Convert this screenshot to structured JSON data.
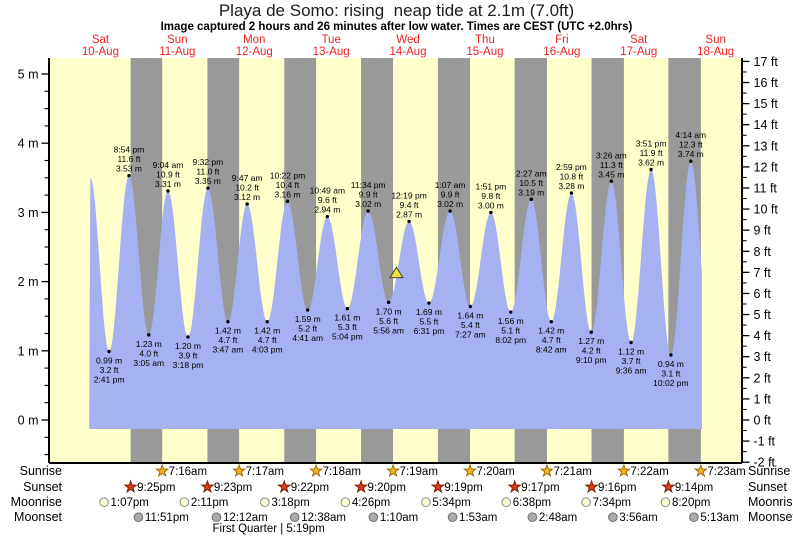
{
  "chart_data": {
    "type": "area",
    "title": "Playa de Somo: rising  neap tide at 2.1m (7.0ft)",
    "subtitle": "Image captured 2 hours and 26 minutes after low water. Times are CEST (UTC +2.0hrs)",
    "days": [
      {
        "name": "Sat",
        "date": "10-Aug"
      },
      {
        "name": "Sun",
        "date": "11-Aug"
      },
      {
        "name": "Mon",
        "date": "12-Aug"
      },
      {
        "name": "Tue",
        "date": "13-Aug"
      },
      {
        "name": "Wed",
        "date": "14-Aug"
      },
      {
        "name": "Thu",
        "date": "15-Aug"
      },
      {
        "name": "Fri",
        "date": "16-Aug"
      },
      {
        "name": "Sat",
        "date": "17-Aug"
      },
      {
        "name": "Sun",
        "date": "18-Aug"
      }
    ],
    "y_axis_left": {
      "unit": "m",
      "ticks": [
        0,
        1,
        2,
        3,
        4,
        5
      ]
    },
    "y_axis_right": {
      "unit": "ft",
      "ticks": [
        -2,
        -1,
        0,
        1,
        2,
        3,
        4,
        5,
        6,
        7,
        8,
        9,
        10,
        11,
        12,
        13,
        14,
        15,
        16,
        17
      ]
    },
    "tide_events": [
      {
        "type": "high",
        "time": "",
        "hours": 8.83,
        "height_m": 3.5,
        "height_ft": 11.5,
        "labeled": false
      },
      {
        "type": "low",
        "time": "2:41 pm",
        "hours": 14.683,
        "height_m": 0.99,
        "height_ft": 3.2,
        "labeled": true
      },
      {
        "type": "high",
        "time": "8:54 pm",
        "hours": 20.9,
        "height_m": 3.53,
        "height_ft": 11.6,
        "labeled": true
      },
      {
        "type": "low",
        "time": "3:05 am",
        "hours": 27.083,
        "height_m": 1.23,
        "height_ft": 4.0,
        "labeled": true
      },
      {
        "type": "high",
        "time": "9:04 am",
        "hours": 33.067,
        "height_m": 3.31,
        "height_ft": 10.9,
        "labeled": true
      },
      {
        "type": "low",
        "time": "3:18 pm",
        "hours": 39.3,
        "height_m": 1.2,
        "height_ft": 3.9,
        "labeled": true
      },
      {
        "type": "high",
        "time": "9:32 pm",
        "hours": 45.533,
        "height_m": 3.35,
        "height_ft": 11.0,
        "labeled": true
      },
      {
        "type": "low",
        "time": "3:47 am",
        "hours": 51.783,
        "height_m": 1.42,
        "height_ft": 4.7,
        "labeled": true
      },
      {
        "type": "high",
        "time": "9:47 am",
        "hours": 57.783,
        "height_m": 3.12,
        "height_ft": 10.2,
        "labeled": true
      },
      {
        "type": "low",
        "time": "4:03 pm",
        "hours": 64.05,
        "height_m": 1.42,
        "height_ft": 4.7,
        "labeled": true
      },
      {
        "type": "high",
        "time": "10:22 pm",
        "hours": 70.367,
        "height_m": 3.16,
        "height_ft": 10.4,
        "labeled": true
      },
      {
        "type": "low",
        "time": "4:41 am",
        "hours": 76.683,
        "height_m": 1.59,
        "height_ft": 5.2,
        "labeled": true
      },
      {
        "type": "high",
        "time": "10:49 am",
        "hours": 82.817,
        "height_m": 2.94,
        "height_ft": 9.6,
        "labeled": true
      },
      {
        "type": "low",
        "time": "5:04 pm",
        "hours": 89.067,
        "height_m": 1.61,
        "height_ft": 5.3,
        "labeled": true
      },
      {
        "type": "high",
        "time": "11:34 pm",
        "hours": 95.567,
        "height_m": 3.02,
        "height_ft": 9.9,
        "labeled": true
      },
      {
        "type": "low",
        "time": "5:56 am",
        "hours": 101.933,
        "height_m": 1.7,
        "height_ft": 5.6,
        "labeled": true
      },
      {
        "type": "high",
        "time": "12:19 pm",
        "hours": 108.317,
        "height_m": 2.87,
        "height_ft": 9.4,
        "labeled": true
      },
      {
        "type": "low",
        "time": "6:31 pm",
        "hours": 114.517,
        "height_m": 1.69,
        "height_ft": 5.5,
        "labeled": true
      },
      {
        "type": "high",
        "time": "1:07 am",
        "hours": 121.117,
        "height_m": 3.02,
        "height_ft": 9.9,
        "labeled": true
      },
      {
        "type": "low",
        "time": "7:27 am",
        "hours": 127.45,
        "height_m": 1.64,
        "height_ft": 5.4,
        "labeled": true
      },
      {
        "type": "high",
        "time": "1:51 pm",
        "hours": 133.85,
        "height_m": 3.0,
        "height_ft": 9.8,
        "labeled": true
      },
      {
        "type": "low",
        "time": "8:02 pm",
        "hours": 140.033,
        "height_m": 1.56,
        "height_ft": 5.1,
        "labeled": true
      },
      {
        "type": "high",
        "time": "2:27 am",
        "hours": 146.45,
        "height_m": 3.19,
        "height_ft": 10.5,
        "labeled": true
      },
      {
        "type": "low",
        "time": "8:42 am",
        "hours": 152.7,
        "height_m": 1.42,
        "height_ft": 4.7,
        "labeled": true
      },
      {
        "type": "high",
        "time": "2:59 pm",
        "hours": 158.983,
        "height_m": 3.28,
        "height_ft": 10.8,
        "labeled": true
      },
      {
        "type": "low",
        "time": "9:10 pm",
        "hours": 165.167,
        "height_m": 1.27,
        "height_ft": 4.2,
        "labeled": true
      },
      {
        "type": "high",
        "time": "3:26 am",
        "hours": 171.433,
        "height_m": 3.45,
        "height_ft": 11.3,
        "labeled": true
      },
      {
        "type": "low",
        "time": "9:36 am",
        "hours": 177.6,
        "height_m": 1.12,
        "height_ft": 3.7,
        "labeled": true
      },
      {
        "type": "high",
        "time": "3:51 pm",
        "hours": 183.85,
        "height_m": 3.62,
        "height_ft": 11.9,
        "labeled": true
      },
      {
        "type": "low",
        "time": "10:02 pm",
        "hours": 190.033,
        "height_m": 0.94,
        "height_ft": 3.1,
        "labeled": true
      },
      {
        "type": "high",
        "time": "4:14 am",
        "hours": 196.233,
        "height_m": 3.74,
        "height_ft": 12.3,
        "labeled": true
      }
    ],
    "curve": {
      "start_hours": 8.5,
      "end_hours": 199.7,
      "base_m": -0.13,
      "end_low": {
        "hours": 202.6,
        "m": 0.9
      }
    },
    "current_marker": {
      "height_m": 2.1,
      "height_ft": 7.0,
      "hours": 104.37,
      "state": "rising"
    },
    "night_bands_hours": [
      [
        21.417,
        31.267
      ],
      [
        45.383,
        55.283
      ],
      [
        69.367,
        79.3
      ],
      [
        93.333,
        103.317
      ],
      [
        117.317,
        127.333
      ],
      [
        141.283,
        151.35
      ],
      [
        165.267,
        175.367
      ],
      [
        189.233,
        199.383
      ]
    ],
    "astro_rows": [
      {
        "label": "Sunrise",
        "icon": "sunrise-star",
        "fill": "#f2b422",
        "stroke": "#a06a00",
        "events": [
          {
            "time": "7:16am",
            "hours": 31.267
          },
          {
            "time": "7:17am",
            "hours": 55.283
          },
          {
            "time": "7:18am",
            "hours": 79.3
          },
          {
            "time": "7:19am",
            "hours": 103.317
          },
          {
            "time": "7:20am",
            "hours": 127.333
          },
          {
            "time": "7:21am",
            "hours": 151.35
          },
          {
            "time": "7:22am",
            "hours": 175.367
          },
          {
            "time": "7:23am",
            "hours": 199.383
          }
        ]
      },
      {
        "label": "Sunset",
        "icon": "sunset-star",
        "fill": "#dd3c14",
        "stroke": "#7c1d00",
        "events": [
          {
            "time": "9:25pm",
            "hours": 21.417
          },
          {
            "time": "9:23pm",
            "hours": 45.383
          },
          {
            "time": "9:22pm",
            "hours": 69.367
          },
          {
            "time": "9:20pm",
            "hours": 93.333
          },
          {
            "time": "9:19pm",
            "hours": 117.317
          },
          {
            "time": "9:17pm",
            "hours": 141.283
          },
          {
            "time": "9:16pm",
            "hours": 165.267
          },
          {
            "time": "9:14pm",
            "hours": 189.233
          }
        ]
      },
      {
        "label": "Moonrise",
        "icon": "moonrise-circle",
        "fill": "#ffffd6",
        "stroke": "#8a8a8a",
        "events": [
          {
            "time": "1:07pm",
            "hours": 13.117
          },
          {
            "time": "2:11pm",
            "hours": 38.183
          },
          {
            "time": "3:18pm",
            "hours": 63.3
          },
          {
            "time": "4:26pm",
            "hours": 88.433
          },
          {
            "time": "5:34pm",
            "hours": 113.567
          },
          {
            "time": "6:38pm",
            "hours": 138.633
          },
          {
            "time": "7:34pm",
            "hours": 163.567
          },
          {
            "time": "8:20pm",
            "hours": 188.333
          }
        ]
      },
      {
        "label": "Moonset",
        "icon": "moonset-circle",
        "fill": "#ababab",
        "stroke": "#6f6f6f",
        "events": [
          {
            "time": "11:51pm",
            "hours": 23.85
          },
          {
            "time": "12:12am",
            "hours": 48.2
          },
          {
            "time": "12:38am",
            "hours": 72.633
          },
          {
            "time": "1:10am",
            "hours": 97.167
          },
          {
            "time": "1:53am",
            "hours": 121.883
          },
          {
            "time": "2:48am",
            "hours": 146.8
          },
          {
            "time": "3:56am",
            "hours": 171.933
          },
          {
            "time": "5:13am",
            "hours": 197.217
          }
        ]
      }
    ],
    "moon_phase_note": {
      "text": "First Quarter | 5:19pm",
      "hours": 64.5
    },
    "colors": {
      "day_band": "#ffffcc",
      "night_band": "#999999",
      "water": "#a5b1f0",
      "day_label": "#ee2222",
      "axis": "#000000",
      "annotation": "#000000",
      "marker_fill": "#ece43c",
      "marker_stroke": "#444444"
    }
  }
}
